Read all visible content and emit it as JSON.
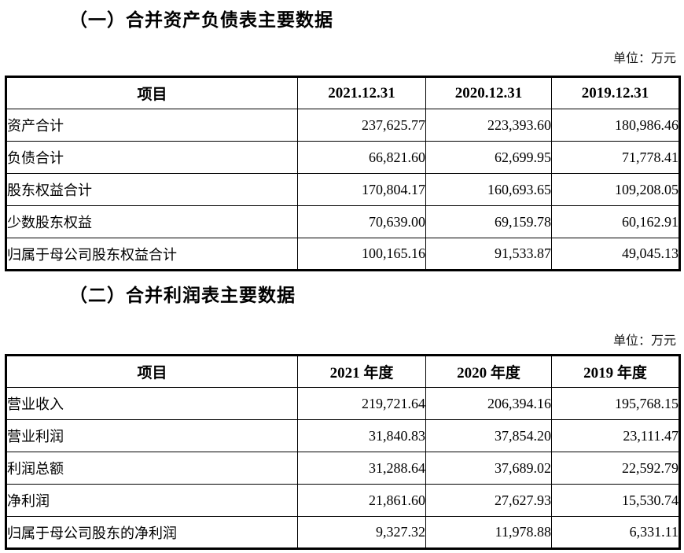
{
  "section1": {
    "title": "（一）合并资产负债表主要数据",
    "unit": "单位：万元",
    "table": {
      "headers": [
        "项目",
        "2021.12.31",
        "2020.12.31",
        "2019.12.31"
      ],
      "rows": [
        [
          "资产合计",
          "237,625.77",
          "223,393.60",
          "180,986.46"
        ],
        [
          "负债合计",
          "66,821.60",
          "62,699.95",
          "71,778.41"
        ],
        [
          "股东权益合计",
          "170,804.17",
          "160,693.65",
          "109,208.05"
        ],
        [
          "少数股东权益",
          "70,639.00",
          "69,159.78",
          "60,162.91"
        ],
        [
          "归属于母公司股东权益合计",
          "100,165.16",
          "91,533.87",
          "49,045.13"
        ]
      ]
    }
  },
  "section2": {
    "title": "（二）合并利润表主要数据",
    "unit": "单位：万元",
    "table": {
      "headers": [
        "项目",
        "2021 年度",
        "2020 年度",
        "2019 年度"
      ],
      "rows": [
        [
          "营业收入",
          "219,721.64",
          "206,394.16",
          "195,768.15"
        ],
        [
          "营业利润",
          "31,840.83",
          "37,854.20",
          "23,111.47"
        ],
        [
          "利润总额",
          "31,288.64",
          "37,689.02",
          "22,592.79"
        ],
        [
          "净利润",
          "21,861.60",
          "27,627.93",
          "15,530.74"
        ],
        [
          "归属于母公司股东的净利润",
          "9,327.32",
          "11,978.88",
          "6,331.11"
        ]
      ]
    }
  }
}
